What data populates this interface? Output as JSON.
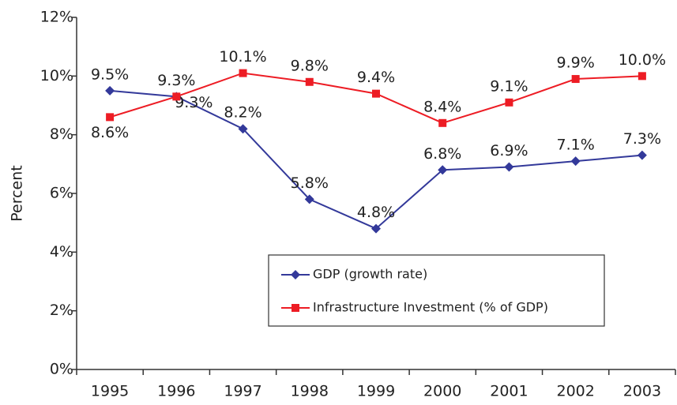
{
  "chart_data": {
    "type": "line",
    "y_label": "Percent",
    "categories": [
      "1995",
      "1996",
      "1997",
      "1998",
      "1999",
      "2000",
      "2001",
      "2002",
      "2003"
    ],
    "series": [
      {
        "name": "GDP (growth rate)",
        "color": "#33399a",
        "values": [
          9.5,
          9.3,
          8.2,
          5.8,
          4.8,
          6.8,
          6.9,
          7.1,
          7.3
        ],
        "value_labels": [
          "9.5%",
          "9.3%",
          "8.2%",
          "5.8%",
          "4.8%",
          "6.8%",
          "6.9%",
          "7.1%",
          "7.3%"
        ]
      },
      {
        "name": "Infrastructure Investment (% of GDP)",
        "color": "#ed1c24",
        "values": [
          8.6,
          9.3,
          10.1,
          9.8,
          9.4,
          8.4,
          9.1,
          9.9,
          10.0
        ],
        "value_labels": [
          "8.6%",
          "9.3%",
          "10.1%",
          "9.8%",
          "9.4%",
          "8.4%",
          "9.1%",
          "9.9%",
          "10.0%"
        ]
      }
    ],
    "ylim": [
      0,
      12
    ],
    "yticks": [
      {
        "value": 0,
        "label": "0%"
      },
      {
        "value": 2,
        "label": "2%"
      },
      {
        "value": 4,
        "label": "4%"
      },
      {
        "value": 6,
        "label": "6%"
      },
      {
        "value": 8,
        "label": "8%"
      },
      {
        "value": 10,
        "label": "10%"
      },
      {
        "value": 12,
        "label": "12%"
      }
    ]
  }
}
